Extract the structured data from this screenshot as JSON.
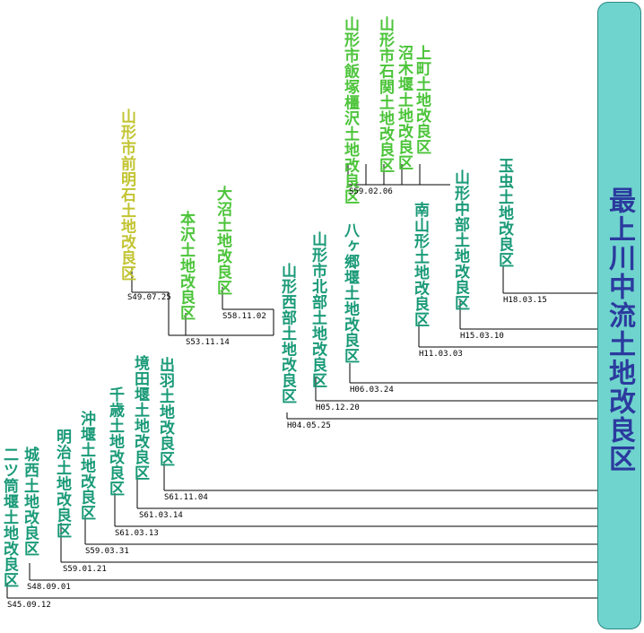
{
  "root": {
    "title": "最上川中流土地改良区",
    "box_color": "#6fd4cd",
    "text_color": "#2b3a9e"
  },
  "colors": {
    "teal": "#1a9a78",
    "green": "#4cc43a",
    "olive": "#c2c431",
    "date": "#000000"
  },
  "districts": [
    {
      "name": "二ツ筒堰土地改良区",
      "date": "S45.09.12",
      "color": "teal"
    },
    {
      "name": "城西土地改良区",
      "date": "S48.09.01",
      "color": "teal"
    },
    {
      "name": "明治土地改良区",
      "date": "S59.01.21",
      "color": "teal"
    },
    {
      "name": "沖堰土地改良区",
      "date": "S59.03.31",
      "color": "teal"
    },
    {
      "name": "千歳土地改良区",
      "date": "S61.03.13",
      "color": "teal"
    },
    {
      "name": "境田堰土地改良区",
      "date": "S61.03.14",
      "color": "teal"
    },
    {
      "name": "出羽土地改良区",
      "date": "S61.11.04",
      "color": "teal"
    },
    {
      "name": "山形西部土地改良区",
      "date": "H04.05.25",
      "color": "teal"
    },
    {
      "name": "山形市北部土地改良区",
      "date": "H05.12.20",
      "color": "teal"
    },
    {
      "name": "八ヶ郷堰土地改良区",
      "date": "H06.03.24",
      "color": "teal"
    },
    {
      "name": "南山形土地改良区",
      "date": "H11.03.03",
      "color": "teal"
    },
    {
      "name": "山形中部土地改良区",
      "date": "H15.03.10",
      "color": "teal"
    },
    {
      "name": "玉虫土地改良区",
      "date": "H18.03.15",
      "color": "teal"
    },
    {
      "name": "本沢土地改良区",
      "date": "S53.11.14",
      "color": "green"
    },
    {
      "name": "大沼土地改良区",
      "date": "S58.11.02",
      "color": "green"
    },
    {
      "name": "山形市前明石土地改良区",
      "date": "S49.07.25",
      "color": "olive"
    },
    {
      "name": "山形市飯塚橿沢土地改良区",
      "date": "",
      "color": "green"
    },
    {
      "name": "山形市石関土地改良区",
      "date": "",
      "color": "green"
    },
    {
      "name": "沼木堰土地改良区",
      "date": "",
      "color": "green"
    },
    {
      "name": "上町土地改良区",
      "date": "",
      "color": "green"
    }
  ],
  "merge_dates": {
    "upper_group": "S59.02.06"
  }
}
